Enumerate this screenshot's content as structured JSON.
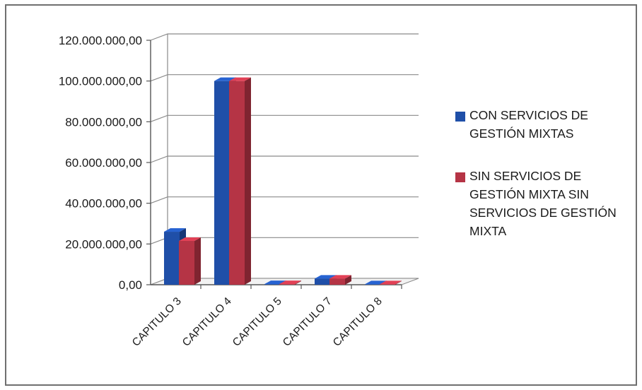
{
  "chart_data": {
    "type": "bar",
    "categories": [
      "CAPITULO 3",
      "CAPITULO 4",
      "CAPITULO 5",
      "CAPITULO 7",
      "CAPITULO 8"
    ],
    "series": [
      {
        "name": "CON SERVICIOS DE GESTIÓN MIXTAS",
        "color": "#1f4fa8",
        "values": [
          26000000,
          100000000,
          300000,
          3000000,
          200000
        ]
      },
      {
        "name": "SIN SERVICIOS DE GESTIÓN MIXTA SIN SERVICIOS DE GESTIÓN MIXTA",
        "color": "#b53445",
        "values": [
          21500000,
          100000000,
          300000,
          3000000,
          200000
        ]
      }
    ],
    "yticks": [
      "0,00",
      "20.000.000,00",
      "40.000.000,00",
      "60.000.000,00",
      "80.000.000,00",
      "100.000.000,00",
      "120.000.000,00"
    ],
    "ylim": [
      0,
      120000000
    ],
    "grid": true,
    "legend_position": "right",
    "view": "3d-clustered-column"
  }
}
